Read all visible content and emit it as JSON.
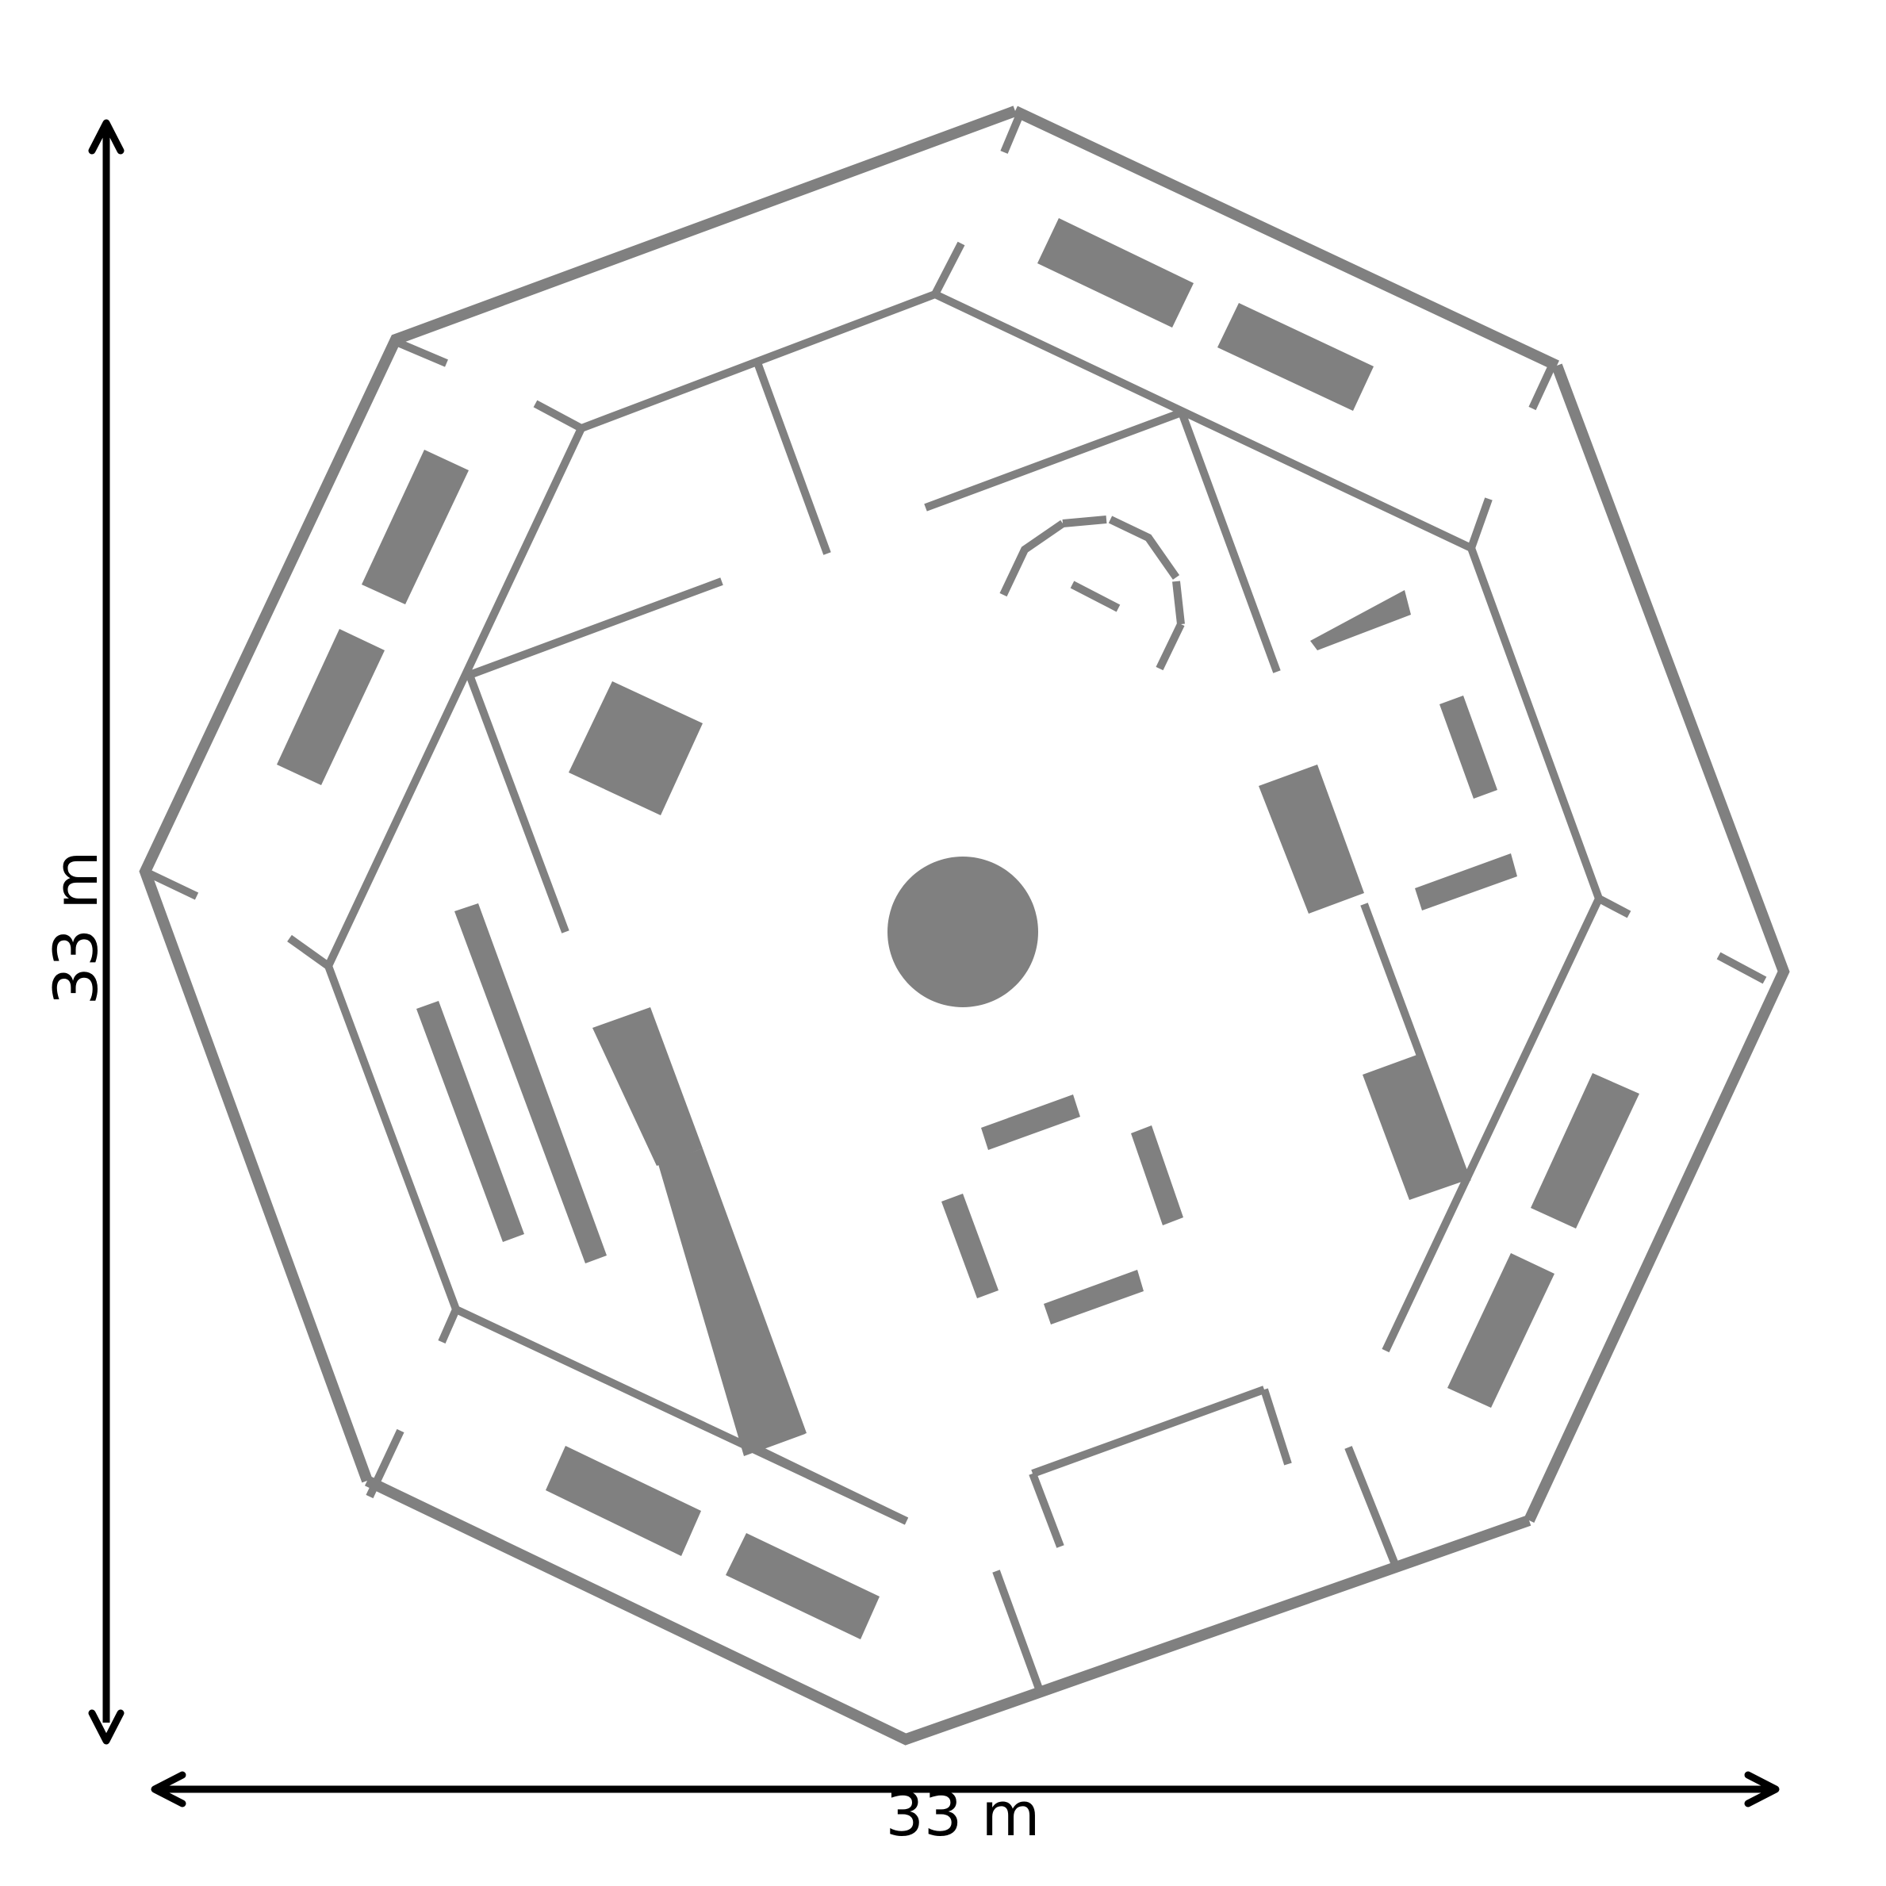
{
  "dimensions": {
    "width_label": "33 m",
    "height_label": "33 m"
  },
  "colors": {
    "wall": "#808080",
    "dimension_line": "#000000",
    "background": "#ffffff"
  }
}
